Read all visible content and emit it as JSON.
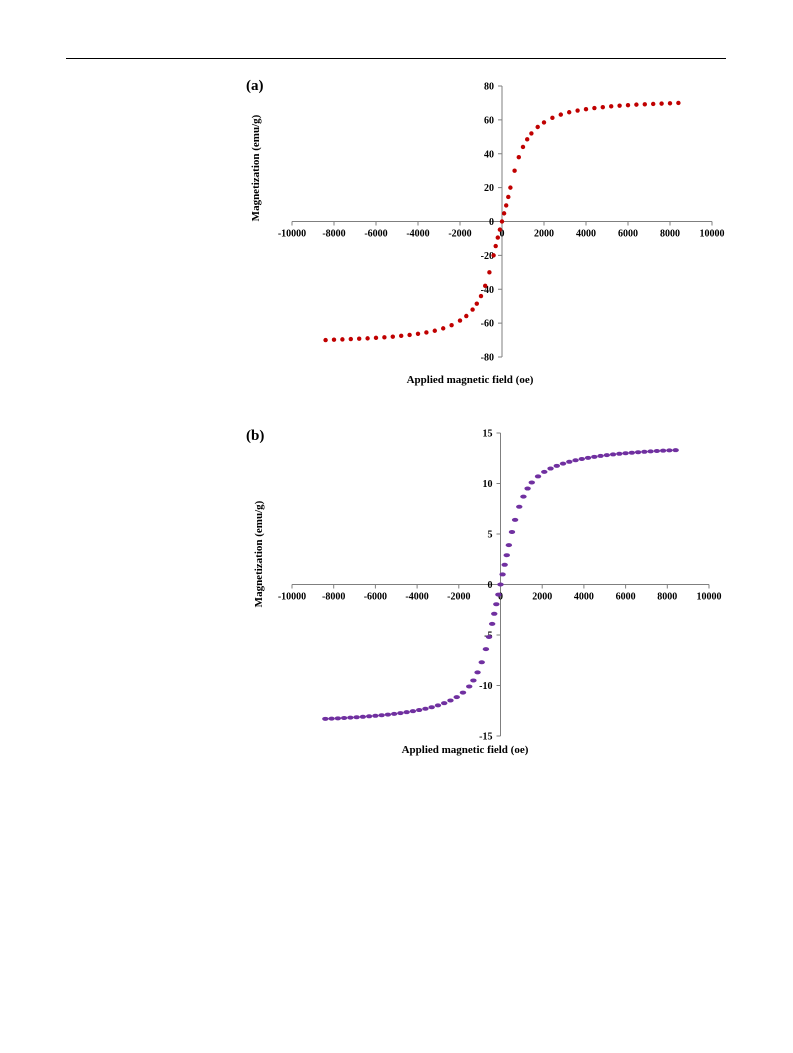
{
  "chart_data": [
    {
      "type": "scatter",
      "panel_label": "(a)",
      "xlabel": "Applied magnetic field (oe)",
      "ylabel": "Magnetization (emu/g)",
      "xlim": [
        -10000,
        10000
      ],
      "ylim": [
        -80,
        80
      ],
      "xticks": [
        -10000,
        -8000,
        -6000,
        -4000,
        -2000,
        0,
        2000,
        4000,
        6000,
        8000,
        10000
      ],
      "yticks": [
        80,
        60,
        40,
        20,
        0,
        -20,
        -40,
        -60,
        -80
      ],
      "grid": false,
      "legend": "none",
      "color": "#c00000",
      "series": [
        {
          "x": [
            -8400,
            -8000,
            -7600,
            -7200,
            -6800,
            -6400,
            -6000,
            -5600,
            -5200,
            -4800,
            -4400,
            -4000,
            -3600,
            -3200,
            -2800,
            -2400,
            -2000,
            -1700,
            -1400,
            -1200,
            -1000,
            -800,
            -600,
            -400,
            -300,
            -200,
            -100,
            0,
            100,
            200,
            300,
            400,
            600,
            800,
            1000,
            1200,
            1400,
            1700,
            2000,
            2400,
            2800,
            3200,
            3600,
            4000,
            4400,
            4800,
            5200,
            5600,
            6000,
            6400,
            6800,
            7200,
            7600,
            8000,
            8400
          ],
          "y": [
            -70,
            -69.8,
            -69.6,
            -69.4,
            -69.2,
            -69,
            -68.7,
            -68.4,
            -68,
            -67.5,
            -67,
            -66.3,
            -65.5,
            -64.5,
            -63.1,
            -61.2,
            -58.5,
            -55.8,
            -52,
            -48.5,
            -44,
            -38,
            -30,
            -20,
            -14.5,
            -9.5,
            -4.8,
            0,
            4.8,
            9.5,
            14.5,
            20,
            30,
            38,
            44,
            48.5,
            52,
            55.8,
            58.5,
            61.2,
            63.1,
            64.5,
            65.5,
            66.3,
            67,
            67.5,
            68,
            68.4,
            68.7,
            69,
            69.2,
            69.4,
            69.6,
            69.8,
            70
          ]
        }
      ]
    },
    {
      "type": "scatter",
      "panel_label": "(b)",
      "xlabel": "Applied magnetic field (oe)",
      "ylabel": "Magnetization (emu/g)",
      "xlim": [
        -10000,
        10000
      ],
      "ylim": [
        -15,
        15
      ],
      "xticks": [
        -10000,
        -8000,
        -6000,
        -4000,
        -2000,
        0,
        2000,
        4000,
        6000,
        8000,
        10000
      ],
      "yticks": [
        15,
        10,
        5,
        0,
        -5,
        -10,
        -15
      ],
      "grid": false,
      "legend": "none",
      "color": "#7030a0",
      "series": [
        {
          "x": [
            -8400,
            -8100,
            -7800,
            -7500,
            -7200,
            -6900,
            -6600,
            -6300,
            -6000,
            -5700,
            -5400,
            -5100,
            -4800,
            -4500,
            -4200,
            -3900,
            -3600,
            -3300,
            -3000,
            -2700,
            -2400,
            -2100,
            -1800,
            -1500,
            -1300,
            -1100,
            -900,
            -700,
            -550,
            -400,
            -300,
            -200,
            -100,
            0,
            100,
            200,
            300,
            400,
            550,
            700,
            900,
            1100,
            1300,
            1500,
            1800,
            2100,
            2400,
            2700,
            3000,
            3300,
            3600,
            3900,
            4200,
            4500,
            4800,
            5100,
            5400,
            5700,
            6000,
            6300,
            6600,
            6900,
            7200,
            7500,
            7800,
            8100,
            8400
          ],
          "y": [
            -13.3,
            -13.28,
            -13.25,
            -13.22,
            -13.18,
            -13.14,
            -13.1,
            -13.05,
            -13,
            -12.94,
            -12.88,
            -12.81,
            -12.73,
            -12.64,
            -12.54,
            -12.43,
            -12.3,
            -12.15,
            -11.97,
            -11.75,
            -11.48,
            -11.15,
            -10.7,
            -10.1,
            -9.5,
            -8.7,
            -7.7,
            -6.4,
            -5.2,
            -3.9,
            -2.9,
            -1.95,
            -1,
            0,
            1,
            1.95,
            2.9,
            3.9,
            5.2,
            6.4,
            7.7,
            8.7,
            9.5,
            10.1,
            10.7,
            11.15,
            11.48,
            11.75,
            11.97,
            12.15,
            12.3,
            12.43,
            12.54,
            12.64,
            12.73,
            12.81,
            12.88,
            12.94,
            13,
            13.05,
            13.1,
            13.14,
            13.18,
            13.22,
            13.25,
            13.28,
            13.3
          ]
        }
      ]
    }
  ]
}
